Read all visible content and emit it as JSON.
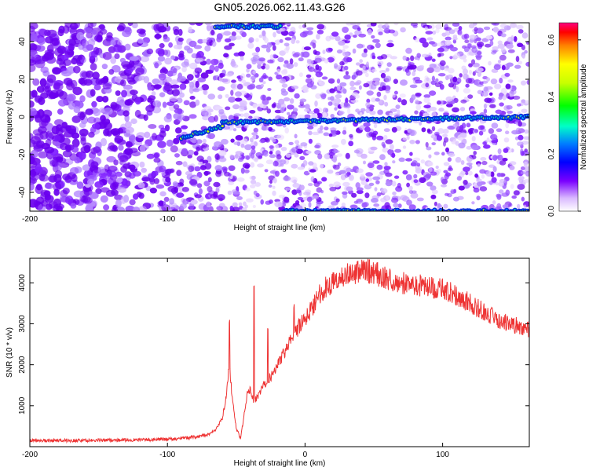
{
  "figure": {
    "title": "GN05.2026.062.11.43.G26"
  },
  "chart_data": [
    {
      "type": "heatmap",
      "xlabel": "Height of straight line (km)",
      "ylabel": "Frequency (Hz)",
      "xlim": [
        -200,
        163
      ],
      "ylim": [
        -50,
        50
      ],
      "xticks": [
        -200,
        -100,
        0,
        100
      ],
      "yticks": [
        -40,
        -20,
        0,
        20,
        40
      ],
      "colorbar": {
        "label": "Normalized spectral amplitude",
        "range": [
          0,
          0.66
        ],
        "ticks": [
          0.0,
          0.2,
          0.4,
          0.6
        ],
        "colormap": "rainbow"
      },
      "features": [
        {
          "feature": "spectral line",
          "x_from": -90,
          "x_to": -60,
          "y_from": -11,
          "y_to": -5
        },
        {
          "feature": "spectral line",
          "x_from": -60,
          "x_to": 163,
          "y_from": -3,
          "y_to": 0
        },
        {
          "feature": "edge line",
          "x_from": -15,
          "x_to": 163,
          "y": -50
        },
        {
          "feature": "edge line",
          "x_from": -65,
          "x_to": -18,
          "y": 48
        }
      ],
      "grid": false
    },
    {
      "type": "line",
      "xlabel": "Height of straight line (km)",
      "ylabel": "SNR (10 * v/v)",
      "xlim": [
        -200,
        163
      ],
      "ylim": [
        0,
        4600
      ],
      "xticks": [
        -200,
        -100,
        0,
        100
      ],
      "yticks": [
        1000,
        2000,
        3000,
        4000
      ],
      "series": [
        {
          "color": "#ee3333",
          "x": [
            -200,
            -180,
            -160,
            -140,
            -120,
            -100,
            -90,
            -80,
            -70,
            -65,
            -60,
            -57,
            -55,
            -53,
            -50,
            -47,
            -45,
            -42,
            -40,
            -37,
            -35,
            -30,
            -25,
            -20,
            -15,
            -10,
            -5,
            0,
            5,
            10,
            15,
            20,
            25,
            30,
            35,
            40,
            45,
            50,
            60,
            70,
            80,
            90,
            100,
            110,
            120,
            130,
            140,
            150,
            163
          ],
          "y": [
            150,
            150,
            150,
            160,
            165,
            180,
            200,
            240,
            300,
            420,
            700,
            1300,
            2000,
            1200,
            450,
            200,
            600,
            1300,
            1400,
            1100,
            1200,
            1500,
            1700,
            2000,
            2300,
            2600,
            2900,
            3100,
            3400,
            3700,
            3900,
            4000,
            4100,
            4200,
            4250,
            4300,
            4300,
            4250,
            4100,
            4000,
            3950,
            3900,
            3850,
            3700,
            3500,
            3300,
            3100,
            3000,
            2850
          ]
        }
      ],
      "spikes": [
        {
          "x": -55,
          "y": 3100
        },
        {
          "x": -37,
          "y": 4050
        },
        {
          "x": -27,
          "y": 3000
        },
        {
          "x": -8,
          "y": 3500
        }
      ],
      "grid": false
    }
  ]
}
